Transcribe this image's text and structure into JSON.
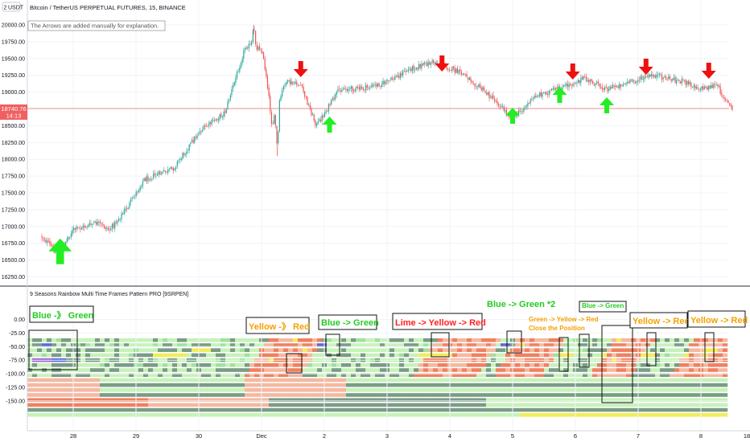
{
  "header": {
    "currency_button": "USDT",
    "interval_badge": "2",
    "symbol_title": "Bitcoin / TetherUS PERPETUAL FUTURES, 15, BINANCE",
    "note": "The Arrows are added manually for explanation."
  },
  "price_pane": {
    "ticks": [
      "20000.00",
      "19750.00",
      "19500.00",
      "19250.00",
      "19000.00",
      "18750.00",
      "18500.00",
      "18250.00",
      "18000.00",
      "17750.00",
      "17500.00",
      "17250.00",
      "17000.00",
      "16750.00",
      "16500.00",
      "16250.00"
    ],
    "current_price_label": "18740.76",
    "countdown_label": "14:13"
  },
  "indicator_pane": {
    "title": "9 Seasons Rainbow Multi Time Frames Pattern PRO [9SRPEN]",
    "ticks": [
      "0.00",
      "-25.00",
      "-50.00",
      "-75.00",
      "-100.00",
      "-125.00",
      "-150.00"
    ]
  },
  "x_axis": {
    "ticks": [
      "28",
      "29",
      "30",
      "Dec",
      "2",
      "3",
      "4",
      "5",
      "6",
      "7",
      "8",
      "18"
    ]
  },
  "annotations": [
    {
      "text": "Blue -》 Green",
      "color": "#22cc22"
    },
    {
      "text": "Yellow -》 Red",
      "color": "#f5a000"
    },
    {
      "text": "Blue -> Green",
      "color": "#22cc22"
    },
    {
      "text": "Lime -> Yellow -> Red",
      "color": "#ff2020"
    },
    {
      "text": "Blue -> Green *2",
      "color": "#22cc22"
    },
    {
      "text": "Green -> Yellow -> Red",
      "color": "#f5a000"
    },
    {
      "text": "Close the Position",
      "color": "#f5a000"
    },
    {
      "text": "Blue -> Green",
      "color": "#22cc22"
    },
    {
      "text": "Yellow -> Red",
      "color": "#f5a000"
    },
    {
      "text": "Yellow -> Red",
      "color": "#f5a000"
    }
  ],
  "chart_data": {
    "type": "candlestick",
    "title": "Bitcoin / TetherUS PERPETUAL FUTURES, 15, BINANCE",
    "price_range": [
      16150,
      20150
    ],
    "price_path_anchors": [
      {
        "x": "Nov 27 12:00",
        "price": 16850
      },
      {
        "x": "Nov 27 18:00",
        "price": 16600
      },
      {
        "x": "Nov 28 00:00",
        "price": 16950
      },
      {
        "x": "Nov 28 09:00",
        "price": 17050
      },
      {
        "x": "Nov 28 14:00",
        "price": 16950
      },
      {
        "x": "Nov 28 21:00",
        "price": 17300
      },
      {
        "x": "Nov 29 03:00",
        "price": 17700
      },
      {
        "x": "Nov 29 14:00",
        "price": 17850
      },
      {
        "x": "Nov 30 00:00",
        "price": 18400
      },
      {
        "x": "Nov 30 10:00",
        "price": 18700
      },
      {
        "x": "Nov 30 18:00",
        "price": 19700
      },
      {
        "x": "Dec 1 00:00",
        "price": 19650
      },
      {
        "x": "Dec 1 02:00",
        "price": 19200
      },
      {
        "x": "Dec 1 04:00",
        "price": 18500
      },
      {
        "x": "Dec 1 09:00",
        "price": 19150
      },
      {
        "x": "Dec 1 15:00",
        "price": 19100
      },
      {
        "x": "Dec 1 21:00",
        "price": 18500
      },
      {
        "x": "Dec 2 06:00",
        "price": 19050
      },
      {
        "x": "Dec 2 15:00",
        "price": 19050
      },
      {
        "x": "Dec 3 00:00",
        "price": 19150
      },
      {
        "x": "Dec 3 09:00",
        "price": 19350
      },
      {
        "x": "Dec 3 18:00",
        "price": 19450
      },
      {
        "x": "Dec 4 06:00",
        "price": 19250
      },
      {
        "x": "Dec 4 18:00",
        "price": 18850
      },
      {
        "x": "Dec 5 00:00",
        "price": 18600
      },
      {
        "x": "Dec 5 09:00",
        "price": 18950
      },
      {
        "x": "Dec 5 18:00",
        "price": 19050
      },
      {
        "x": "Dec 6 03:00",
        "price": 19200
      },
      {
        "x": "Dec 6 12:00",
        "price": 19050
      },
      {
        "x": "Dec 6 21:00",
        "price": 19150
      },
      {
        "x": "Dec 7 06:00",
        "price": 19250
      },
      {
        "x": "Dec 7 18:00",
        "price": 19150
      },
      {
        "x": "Dec 8 00:00",
        "price": 19050
      },
      {
        "x": "Dec 8 06:00",
        "price": 19100
      },
      {
        "x": "Dec 8 12:00",
        "price": 18740
      }
    ],
    "extremes": [
      {
        "x": "Nov 30 21:00",
        "price": 20000,
        "note": "high"
      },
      {
        "x": "Dec 1 06:00",
        "price": 18050,
        "note": "low"
      }
    ],
    "current_price": 18740.76,
    "arrows": [
      {
        "direction": "up",
        "x": "Nov 27 19:00",
        "color": "#22ee22"
      },
      {
        "direction": "down",
        "x": "Dec 1 15:00",
        "color": "#ee1111"
      },
      {
        "direction": "up",
        "x": "Dec 2 02:00",
        "color": "#22ee22"
      },
      {
        "direction": "down",
        "x": "Dec 3 21:00",
        "color": "#ee1111"
      },
      {
        "direction": "up",
        "x": "Dec 5 00:00",
        "color": "#22ee22"
      },
      {
        "direction": "up",
        "x": "Dec 5 18:00",
        "color": "#22ee22"
      },
      {
        "direction": "down",
        "x": "Dec 5 23:00",
        "color": "#ee1111"
      },
      {
        "direction": "up",
        "x": "Dec 6 12:00",
        "color": "#22ee22"
      },
      {
        "direction": "down",
        "x": "Dec 7 03:00",
        "color": "#ee1111"
      },
      {
        "direction": "down",
        "x": "Dec 8 03:00",
        "color": "#ee1111"
      }
    ],
    "indicator": {
      "type": "heatmap",
      "y_range": [
        -152,
        12
      ],
      "rows": 16,
      "colors": {
        "red": "#f08060",
        "light_red": "#f5b8a0",
        "green": "#7a9c86",
        "light_green": "#c6f2b8",
        "lime": "#9ee29e",
        "yellow": "#f2ec5a",
        "blue": "#5a6ad8",
        "purple": "#a060d8"
      }
    }
  }
}
